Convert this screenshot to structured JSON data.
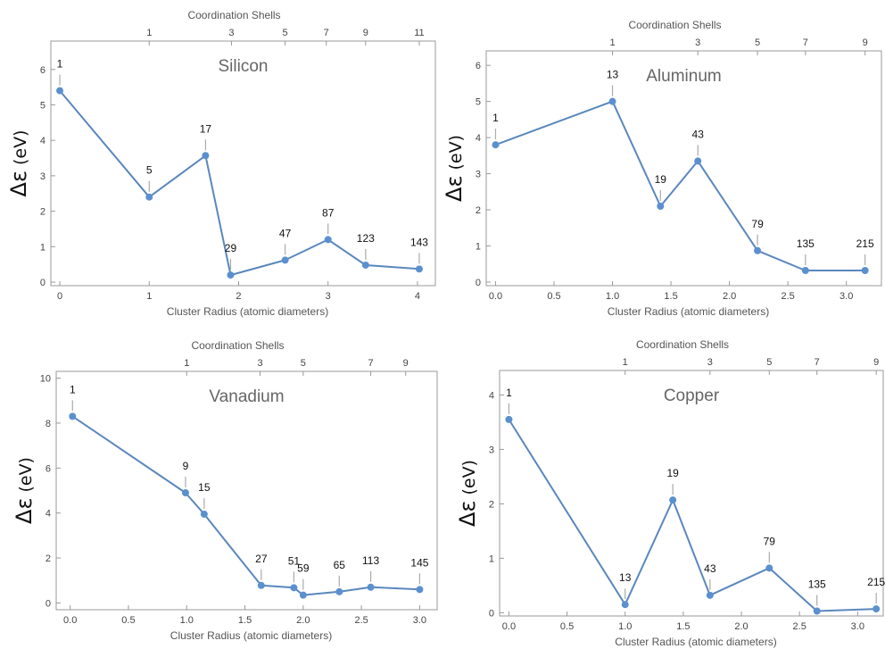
{
  "colors": {
    "series": "#5a87bd",
    "point": "#5b90cf"
  },
  "ylabel_prefix": "Δε",
  "ylabel_unit": " (eV)",
  "chart_data": [
    {
      "type": "line",
      "title": "Silicon",
      "xlabel": "Cluster Radius (atomic diameters)",
      "ylabel": "Δε (eV)",
      "top_axis_label": "Coordination Shells",
      "xlim": [
        -0.1,
        4.2
      ],
      "ylim": [
        -0.1,
        6.8
      ],
      "x_ticks": [
        0,
        1,
        2,
        3,
        4
      ],
      "y_ticks": [
        0,
        1,
        2,
        3,
        4,
        5,
        6
      ],
      "top_ticks": [
        {
          "label": "1",
          "x": 1.0
        },
        {
          "label": "3",
          "x": 1.92
        },
        {
          "label": "5",
          "x": 2.52
        },
        {
          "label": "7",
          "x": 2.98
        },
        {
          "label": "9",
          "x": 3.42
        },
        {
          "label": "11",
          "x": 4.02
        }
      ],
      "x": [
        0,
        1,
        1.63,
        1.91,
        2.52,
        3,
        3.42,
        4.02
      ],
      "y": [
        5.4,
        2.4,
        3.57,
        0.2,
        0.62,
        1.2,
        0.48,
        0.37
      ],
      "point_labels": [
        "1",
        "5",
        "17",
        "29",
        "47",
        "87",
        "123",
        "143"
      ]
    },
    {
      "type": "line",
      "title": "Aluminum",
      "xlabel": "Cluster Radius  (atomic diameters)",
      "ylabel": "Δε (eV)",
      "top_axis_label": "Coordination Shells",
      "xlim": [
        -0.08,
        3.3
      ],
      "ylim": [
        -0.1,
        6.4
      ],
      "x_ticks": [
        0.0,
        0.5,
        1.0,
        1.5,
        2.0,
        2.5,
        3.0
      ],
      "x_tick_labels": [
        "0.0",
        "0.5",
        "1.0",
        "1.5",
        "2.0",
        "2.5",
        "3.0"
      ],
      "y_ticks": [
        0,
        1,
        2,
        3,
        4,
        5,
        6
      ],
      "top_ticks": [
        {
          "label": "1",
          "x": 1.0
        },
        {
          "label": "3",
          "x": 1.73
        },
        {
          "label": "5",
          "x": 2.24
        },
        {
          "label": "7",
          "x": 2.65
        },
        {
          "label": "9",
          "x": 3.16
        }
      ],
      "x": [
        0,
        1.0,
        1.41,
        1.73,
        2.24,
        2.65,
        3.16
      ],
      "y": [
        3.8,
        5.0,
        2.1,
        3.35,
        0.87,
        0.32,
        0.32
      ],
      "point_labels": [
        "1",
        "13",
        "19",
        "43",
        "79",
        "135",
        "215"
      ]
    },
    {
      "type": "line",
      "title": "Vanadium",
      "xlabel": "Cluster Radius (atomic diameters)",
      "ylabel": "Δε (eV)",
      "top_axis_label": "Coordination Shells",
      "xlim": [
        -0.12,
        3.15
      ],
      "ylim": [
        -0.3,
        10.3
      ],
      "x_ticks": [
        0.0,
        0.5,
        1.0,
        1.5,
        2.0,
        2.5,
        3.0
      ],
      "x_tick_labels": [
        "0.0",
        "0.5",
        "1.0",
        "1.5",
        "2.0",
        "2.5",
        "3.0"
      ],
      "y_ticks": [
        0,
        2,
        4,
        6,
        8,
        10
      ],
      "top_ticks": [
        {
          "label": "1",
          "x": 1.0
        },
        {
          "label": "3",
          "x": 1.63
        },
        {
          "label": "5",
          "x": 2.0
        },
        {
          "label": "7",
          "x": 2.58
        },
        {
          "label": "9",
          "x": 2.88
        }
      ],
      "x": [
        0.02,
        0.99,
        1.15,
        1.64,
        1.92,
        2.0,
        2.31,
        2.58,
        3.0
      ],
      "y": [
        8.3,
        4.9,
        3.95,
        0.78,
        0.68,
        0.35,
        0.5,
        0.7,
        0.6
      ],
      "point_labels": [
        "1",
        "9",
        "15",
        "27",
        "51",
        "59",
        "65",
        "113",
        "145"
      ]
    },
    {
      "type": "line",
      "title": "Copper",
      "xlabel": "Cluster Radius  (atomic diameters)",
      "ylabel": "Δε (eV)",
      "top_axis_label": "Coordination Shells",
      "xlim": [
        -0.08,
        3.22
      ],
      "ylim": [
        -0.06,
        4.45
      ],
      "x_ticks": [
        0.0,
        0.5,
        1.0,
        1.5,
        2.0,
        2.5,
        3.0
      ],
      "x_tick_labels": [
        "0.0",
        "0.5",
        "1.0",
        "1.5",
        "2.0",
        "2.5",
        "3.0"
      ],
      "y_ticks": [
        0,
        1,
        2,
        3,
        4
      ],
      "top_ticks": [
        {
          "label": "1",
          "x": 1.0
        },
        {
          "label": "3",
          "x": 1.73
        },
        {
          "label": "5",
          "x": 2.24
        },
        {
          "label": "7",
          "x": 2.65
        },
        {
          "label": "9",
          "x": 3.16
        }
      ],
      "x": [
        0,
        1.0,
        1.41,
        1.73,
        2.24,
        2.65,
        3.16
      ],
      "y": [
        3.55,
        0.15,
        2.07,
        0.32,
        0.82,
        0.03,
        0.07
      ],
      "point_labels": [
        "1",
        "13",
        "19",
        "43",
        "79",
        "135",
        "215"
      ]
    }
  ]
}
